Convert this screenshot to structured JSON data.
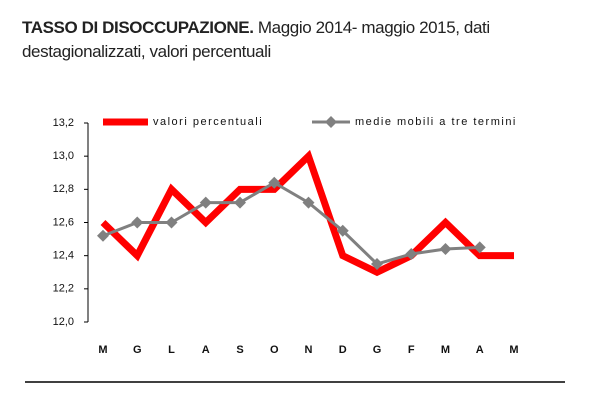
{
  "chart_data": {
    "type": "line",
    "title": "TASSO DI DISOCCUPAZIONE.",
    "subtitle": "Maggio 2014- maggio 2015, dati destagionalizzati, valori percentuali",
    "categories": [
      "M",
      "G",
      "L",
      "A",
      "S",
      "O",
      "N",
      "D",
      "G",
      "F",
      "M",
      "A",
      "M"
    ],
    "series": [
      {
        "name": "valori percentuali",
        "color": "#ff0000",
        "values": [
          12.6,
          12.4,
          12.8,
          12.6,
          12.8,
          12.8,
          13.0,
          12.4,
          12.3,
          12.4,
          12.6,
          12.4,
          12.4
        ]
      },
      {
        "name": "medie mobili a tre termini",
        "color": "#808080",
        "values": [
          12.52,
          12.6,
          12.6,
          12.72,
          12.72,
          12.84,
          12.72,
          12.55,
          12.35,
          12.41,
          12.44,
          12.45,
          null
        ]
      }
    ],
    "ylim": [
      12.0,
      13.2
    ],
    "yticks": [
      {
        "value": 12.0,
        "label": "12,0"
      },
      {
        "value": 12.2,
        "label": "12,2"
      },
      {
        "value": 12.4,
        "label": "12,4"
      },
      {
        "value": 12.6,
        "label": "12,6"
      },
      {
        "value": 12.8,
        "label": "12,8"
      },
      {
        "value": 13.0,
        "label": "13,0"
      },
      {
        "value": 13.2,
        "label": "13,2"
      }
    ],
    "grid": false
  }
}
